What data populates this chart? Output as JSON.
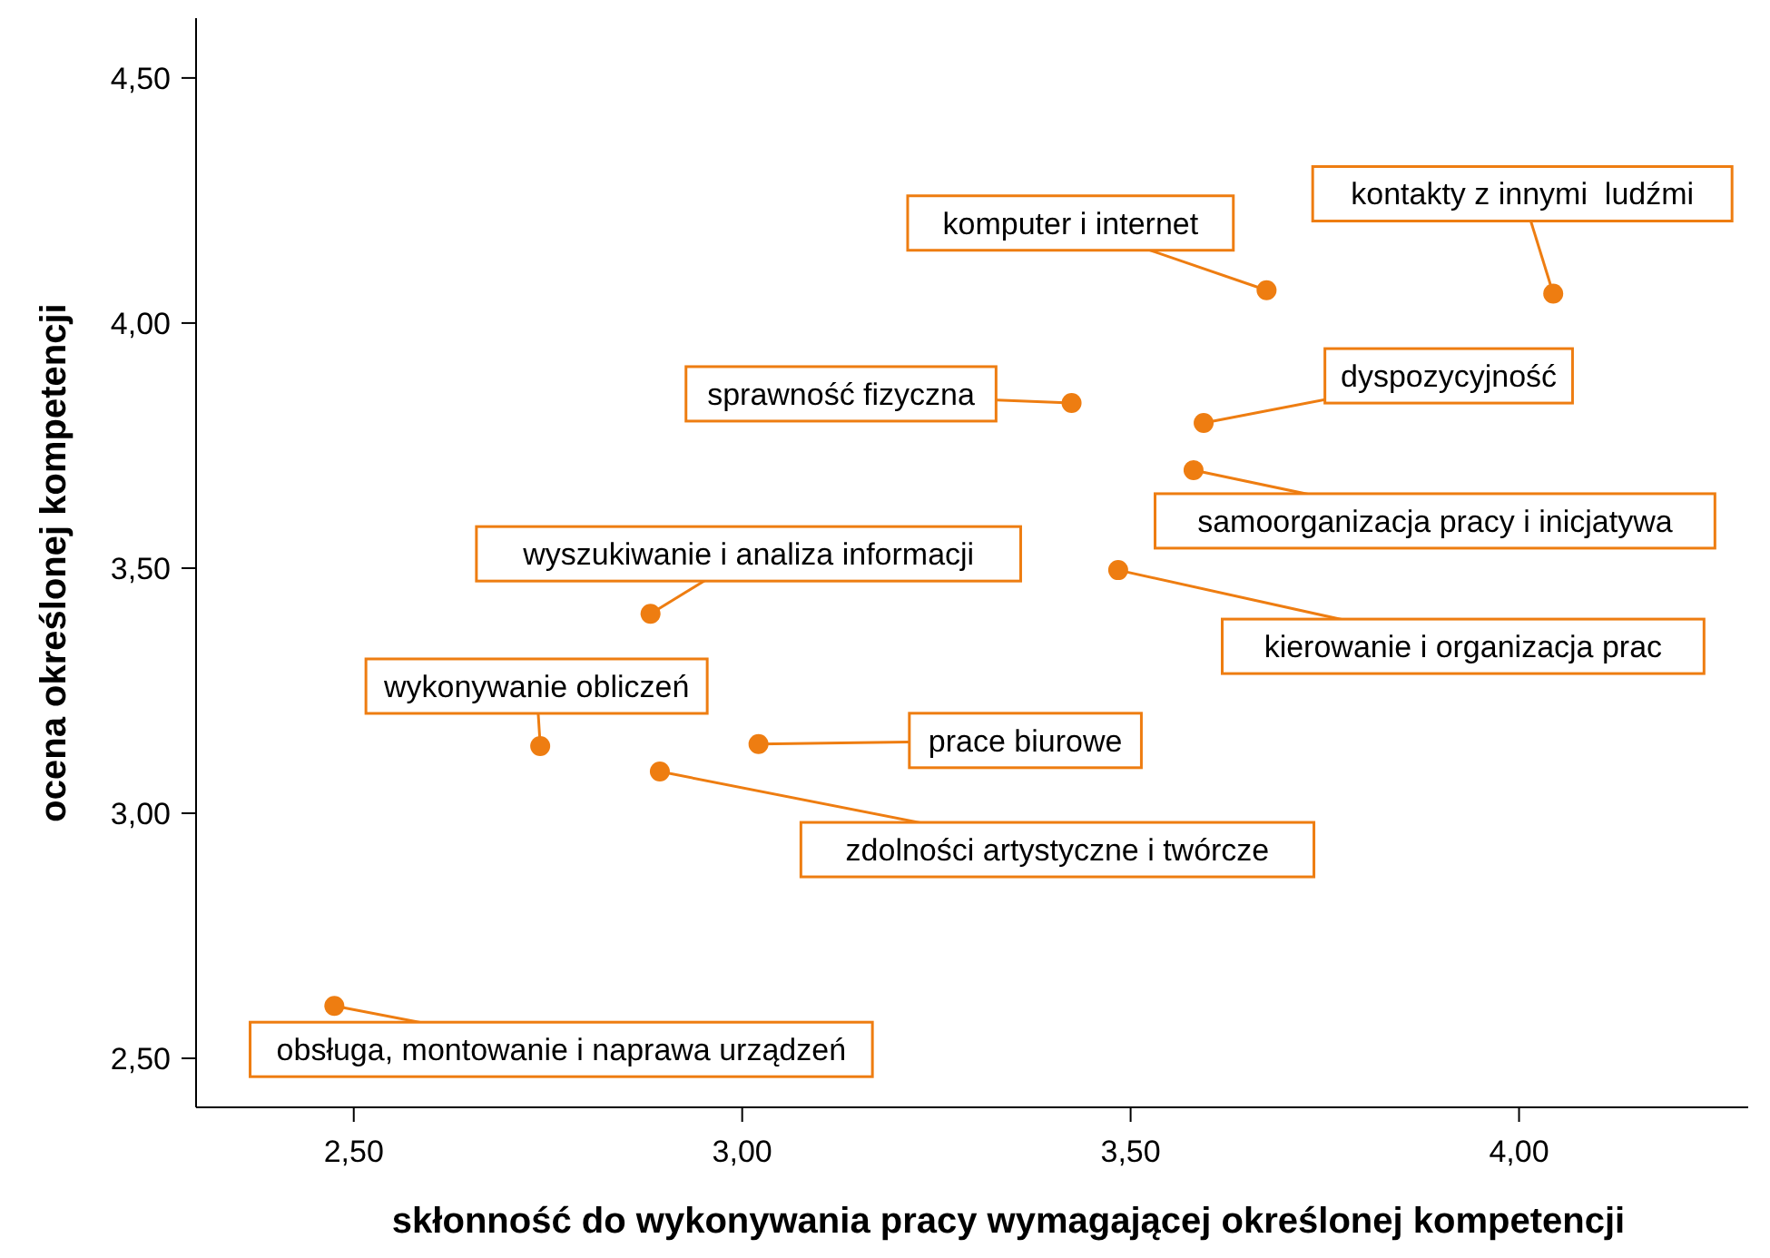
{
  "chart_data": {
    "type": "scatter",
    "xlabel": "skłonność do wykonywania pracy wymagającej określonej kompetencji",
    "ylabel": "ocena określonej kompetencji",
    "x": [
      3.675,
      4.044,
      3.424,
      3.594,
      3.581,
      3.484,
      2.882,
      2.74,
      3.021,
      2.894,
      2.475
    ],
    "series": [
      {
        "color": "#ee7d11",
        "values": [
          4.067,
          4.06,
          3.837,
          3.796,
          3.7,
          3.496,
          3.407,
          3.137,
          3.141,
          3.085,
          2.607
        ]
      }
    ],
    "marker": "circle",
    "xlim": [
      2.297,
      4.295
    ],
    "xticks": [
      {
        "value": 2.5,
        "label": "2,50"
      },
      {
        "value": 3,
        "label": "3,00"
      },
      {
        "value": 3.5,
        "label": "3,50"
      },
      {
        "value": 4,
        "label": "4,00"
      }
    ],
    "ylim": [
      2.4,
      4.622
    ],
    "yticks": [
      {
        "value": 2.5,
        "label": "2,50"
      },
      {
        "value": 3,
        "label": "3,00"
      },
      {
        "value": 3.5,
        "label": "3,50"
      },
      {
        "value": 4,
        "label": "4,00"
      },
      {
        "value": 4.5,
        "label": "4,50"
      }
    ],
    "grid": false,
    "annotations": [
      {
        "text": "komputer i internet",
        "x": 3.675,
        "y": 4.067
      },
      {
        "text": "kontakty z innymi  ludźmi",
        "x": 4.044,
        "y": 4.06
      },
      {
        "text": "sprawność fizyczna",
        "x": 3.424,
        "y": 3.837
      },
      {
        "text": "dyspozycyjność",
        "x": 3.594,
        "y": 3.796
      },
      {
        "text": "samoorganizacja pracy i inicjatywa",
        "x": 3.581,
        "y": 3.7
      },
      {
        "text": "kierowanie i organizacja prac",
        "x": 3.484,
        "y": 3.496
      },
      {
        "text": "wyszukiwanie i analiza informacji",
        "x": 2.882,
        "y": 3.407
      },
      {
        "text": "wykonywanie obliczeń",
        "x": 2.74,
        "y": 3.137
      },
      {
        "text": "prace biurowe",
        "x": 3.021,
        "y": 3.141
      },
      {
        "text": "zdolności artystyczne i twórcze",
        "x": 2.894,
        "y": 3.085
      },
      {
        "text": "obsługa, montowanie i naprawa urządzeń",
        "x": 2.475,
        "y": 2.607
      }
    ]
  }
}
